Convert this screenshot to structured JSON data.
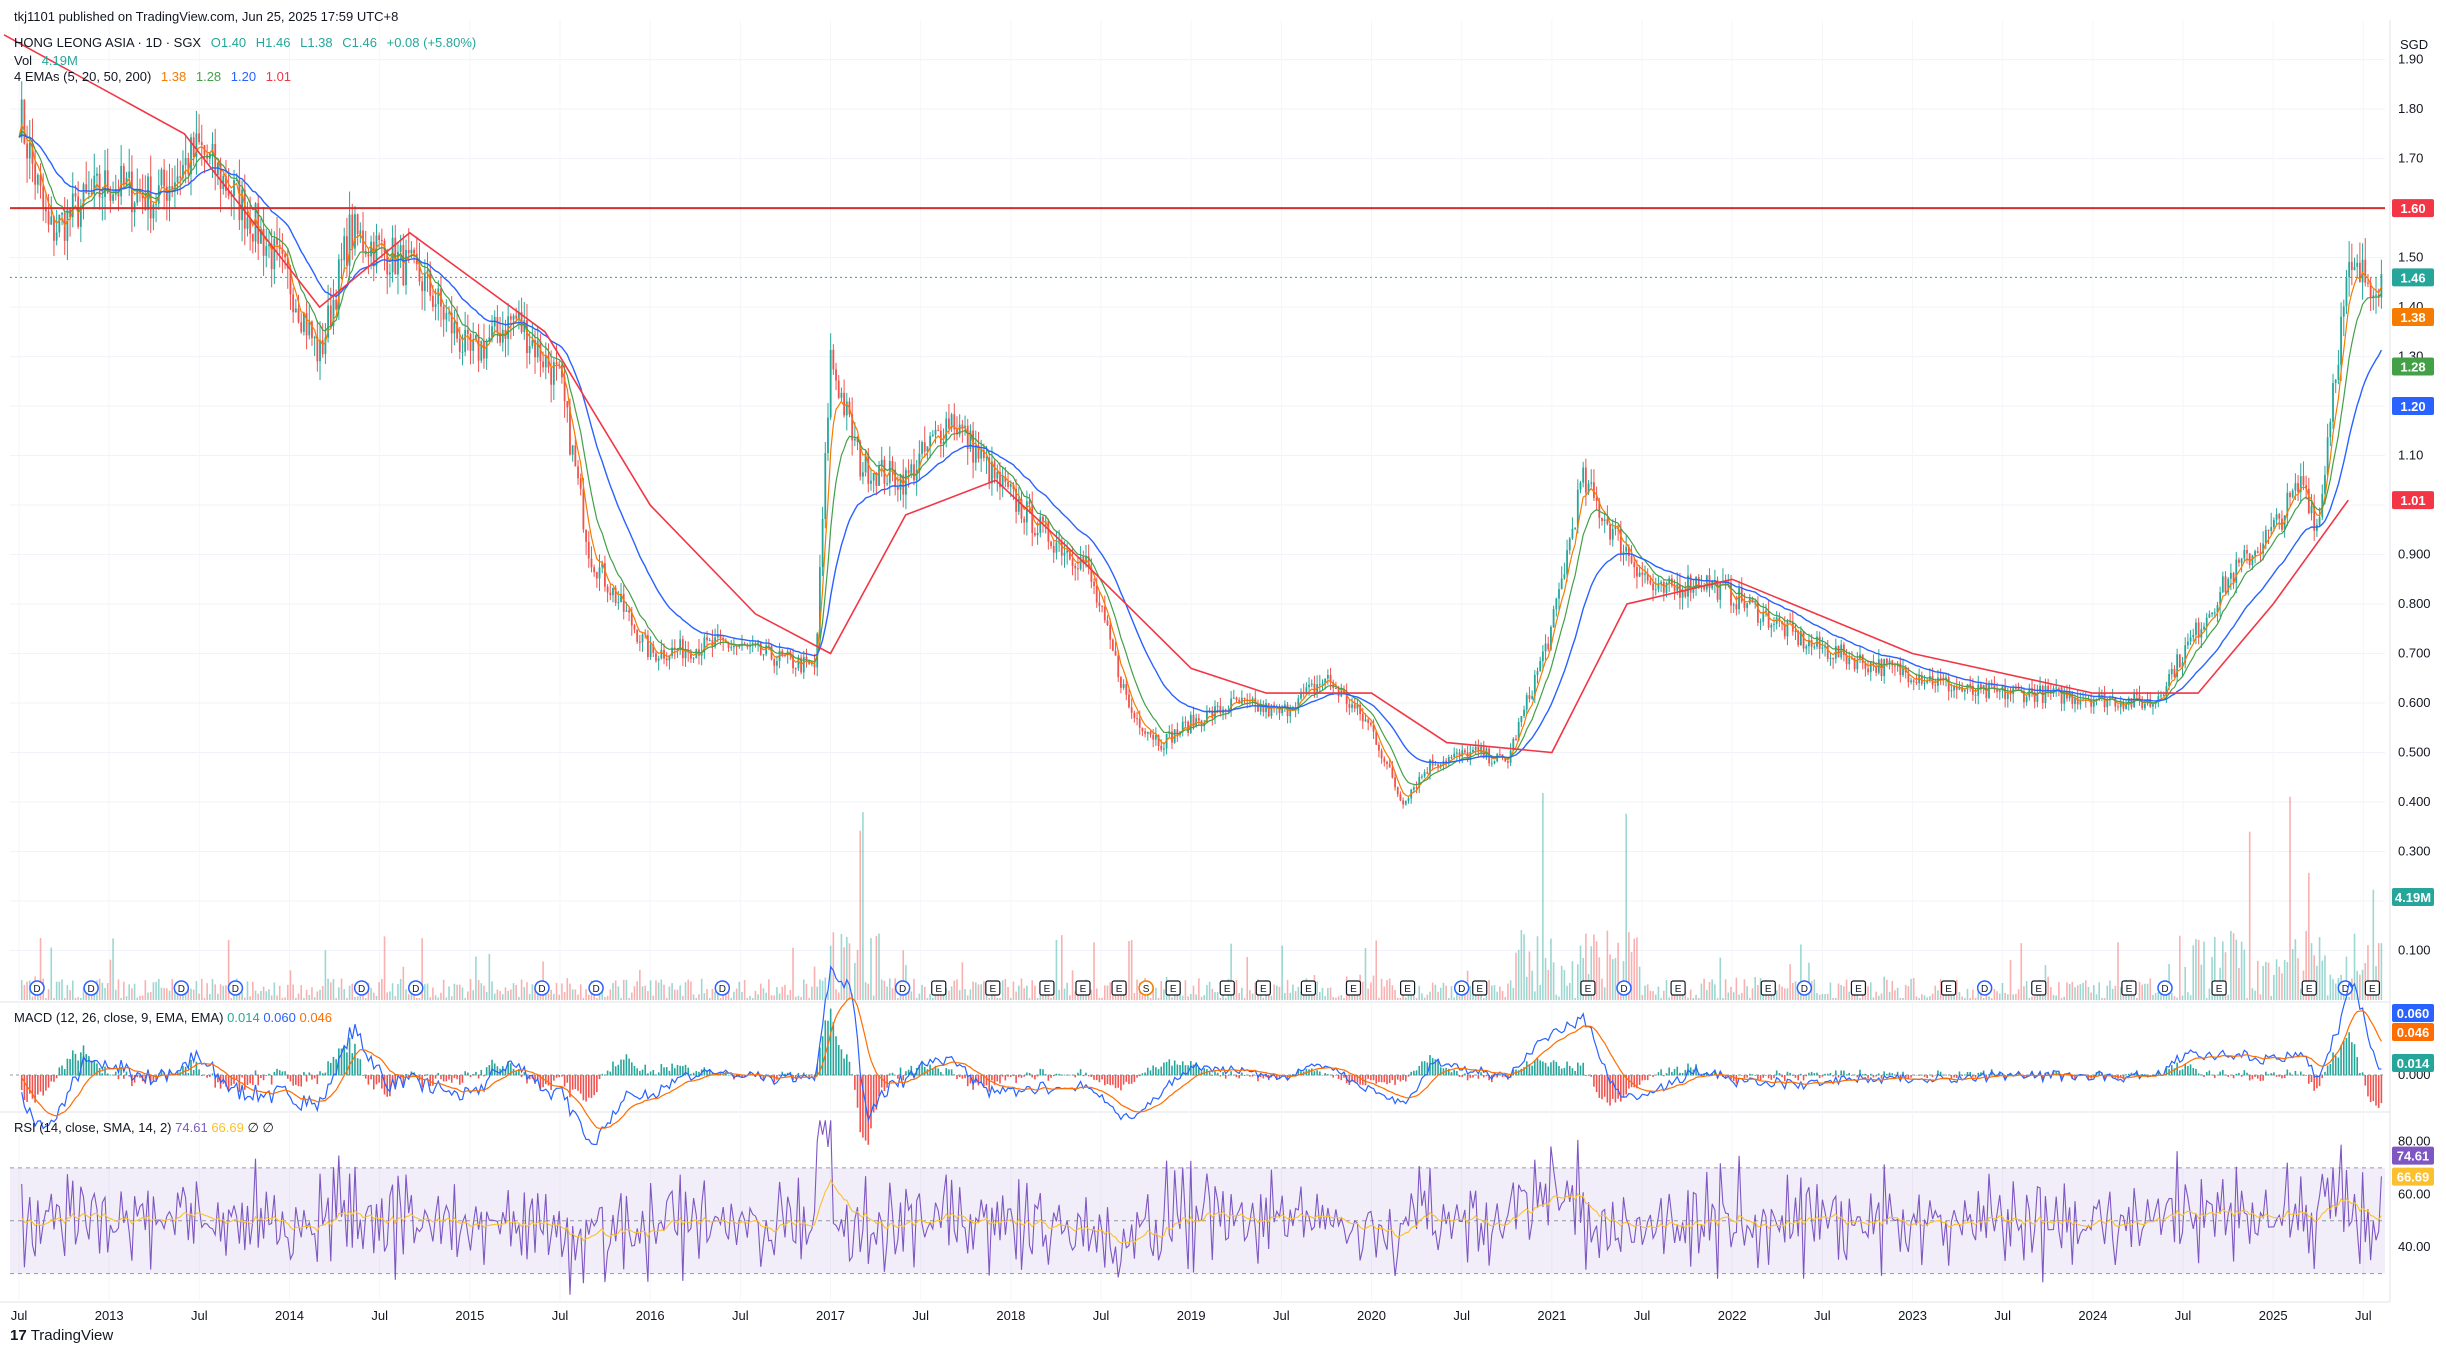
{
  "header": {
    "published": "tkj1101 published on TradingView.com, Jun 25, 2025 17:59 UTC+8",
    "symbol": "HONG LEONG ASIA · 1D · SGX",
    "ohlc": {
      "o": "O1.40",
      "h": "H1.46",
      "l": "L1.38",
      "c": "C1.46",
      "chg": "+0.08 (+5.80%)"
    },
    "vol_label": "Vol",
    "vol_value": "4.19M",
    "ema_label": "4 EMAs (5, 20, 50, 200)",
    "ema_values": [
      "1.38",
      "1.28",
      "1.20",
      "1.01"
    ]
  },
  "colors": {
    "up": "#26a69a",
    "down": "#ef5350",
    "ema5": "#f57c00",
    "ema20": "#43a047",
    "ema50": "#2962ff",
    "ema200": "#f23645",
    "resistance": "#d32f2f",
    "macd": "#2962ff",
    "signal": "#ff6d00",
    "rsi": "#7e57c2",
    "rsi_ma": "#fbc02d",
    "price_tag": "#26a69a"
  },
  "chart_data": {
    "type": "line",
    "currency": "SGD",
    "price_axis": {
      "ticks": [
        "1.90",
        "1.80",
        "1.70",
        "1.60",
        "1.50",
        "1.40",
        "1.30",
        "1.20",
        "1.10",
        "1.00",
        "0.900",
        "0.800",
        "0.700",
        "0.600",
        "0.500",
        "0.400",
        "0.300",
        "0.200",
        "0.100"
      ]
    },
    "time_axis": [
      "Jul",
      "2013",
      "Jul",
      "2014",
      "Jul",
      "2015",
      "Jul",
      "2016",
      "Jul",
      "2017",
      "Jul",
      "2018",
      "Jul",
      "2019",
      "Jul",
      "2020",
      "Jul",
      "2021",
      "Jul",
      "2022",
      "Jul",
      "2023",
      "Jul",
      "2024",
      "Jul",
      "2025",
      "Jul"
    ],
    "price_series": {
      "name": "Close",
      "x": [
        "2012-06",
        "2012-09",
        "2013-01",
        "2013-04",
        "2013-07",
        "2013-10",
        "2014-01",
        "2014-03",
        "2014-05",
        "2014-08",
        "2014-10",
        "2015-01",
        "2015-04",
        "2015-07",
        "2015-09",
        "2015-11",
        "2016-01",
        "2016-06",
        "2016-12",
        "2017-01",
        "2017-03",
        "2017-06",
        "2017-09",
        "2017-12",
        "2018-03",
        "2018-06",
        "2018-09",
        "2018-11",
        "2019-01",
        "2019-04",
        "2019-07",
        "2019-10",
        "2020-01",
        "2020-03",
        "2020-05",
        "2020-08",
        "2020-10",
        "2021-01",
        "2021-03",
        "2021-05",
        "2021-08",
        "2021-11",
        "2022-02",
        "2022-06",
        "2022-10",
        "2023-01",
        "2023-05",
        "2023-09",
        "2024-01",
        "2024-05",
        "2024-08",
        "2024-10",
        "2025-01",
        "2025-03",
        "2025-04",
        "2025-05",
        "2025-06"
      ],
      "y": [
        1.92,
        1.55,
        1.65,
        1.62,
        1.72,
        1.6,
        1.45,
        1.3,
        1.55,
        1.5,
        1.45,
        1.3,
        1.38,
        1.25,
        0.9,
        0.8,
        0.7,
        0.72,
        0.67,
        1.3,
        1.08,
        1.05,
        1.18,
        1.05,
        0.95,
        0.88,
        0.58,
        0.52,
        0.56,
        0.6,
        0.58,
        0.65,
        0.55,
        0.4,
        0.48,
        0.5,
        0.48,
        0.75,
        1.05,
        0.95,
        0.82,
        0.85,
        0.8,
        0.72,
        0.68,
        0.66,
        0.62,
        0.62,
        0.61,
        0.6,
        0.75,
        0.85,
        0.95,
        1.05,
        0.95,
        1.25,
        1.46
      ]
    },
    "ema200_series": {
      "x": [
        "2012-06",
        "2013-06",
        "2014-03",
        "2014-09",
        "2015-06",
        "2016-01",
        "2016-08",
        "2017-01",
        "2017-06",
        "2017-12",
        "2018-06",
        "2019-01",
        "2019-06",
        "2020-01",
        "2020-06",
        "2021-01",
        "2021-06",
        "2022-01",
        "2023-01",
        "2024-01",
        "2024-08",
        "2025-01",
        "2025-06"
      ],
      "y": [
        1.95,
        1.75,
        1.4,
        1.55,
        1.35,
        1.0,
        0.78,
        0.7,
        0.98,
        1.05,
        0.88,
        0.67,
        0.62,
        0.62,
        0.52,
        0.5,
        0.8,
        0.85,
        0.7,
        0.62,
        0.62,
        0.8,
        1.01
      ]
    },
    "resistance_level": 1.6,
    "last_price": 1.46,
    "price_tags": [
      {
        "label": "1.60",
        "value": 1.6,
        "color": "#f23645"
      },
      {
        "label": "1.46",
        "value": 1.46,
        "color": "#26a69a"
      },
      {
        "label": "1.38",
        "value": 1.38,
        "color": "#f57c00"
      },
      {
        "label": "1.28",
        "value": 1.28,
        "color": "#43a047"
      },
      {
        "label": "1.20",
        "value": 1.2,
        "color": "#2962ff"
      },
      {
        "label": "1.01",
        "value": 1.01,
        "color": "#f23645"
      }
    ],
    "volume": {
      "last": "4.19M"
    },
    "events": [
      {
        "year": 2012.6,
        "type": "D"
      },
      {
        "year": 2012.9,
        "type": "D"
      },
      {
        "year": 2013.4,
        "type": "D"
      },
      {
        "year": 2013.7,
        "type": "D"
      },
      {
        "year": 2014.4,
        "type": "D"
      },
      {
        "year": 2014.7,
        "type": "D"
      },
      {
        "year": 2015.4,
        "type": "D"
      },
      {
        "year": 2015.7,
        "type": "D"
      },
      {
        "year": 2016.4,
        "type": "D"
      },
      {
        "year": 2017.4,
        "type": "D"
      },
      {
        "year": 2017.6,
        "type": "E"
      },
      {
        "year": 2017.9,
        "type": "E"
      },
      {
        "year": 2018.2,
        "type": "E"
      },
      {
        "year": 2018.4,
        "type": "E"
      },
      {
        "year": 2018.6,
        "type": "E"
      },
      {
        "year": 2018.75,
        "type": "S"
      },
      {
        "year": 2018.9,
        "type": "E"
      },
      {
        "year": 2019.2,
        "type": "E"
      },
      {
        "year": 2019.4,
        "type": "E"
      },
      {
        "year": 2019.65,
        "type": "E"
      },
      {
        "year": 2019.9,
        "type": "E"
      },
      {
        "year": 2020.2,
        "type": "E"
      },
      {
        "year": 2020.5,
        "type": "D"
      },
      {
        "year": 2020.6,
        "type": "E"
      },
      {
        "year": 2021.2,
        "type": "E"
      },
      {
        "year": 2021.4,
        "type": "D"
      },
      {
        "year": 2021.7,
        "type": "E"
      },
      {
        "year": 2022.2,
        "type": "E"
      },
      {
        "year": 2022.4,
        "type": "D"
      },
      {
        "year": 2022.7,
        "type": "E"
      },
      {
        "year": 2023.2,
        "type": "E"
      },
      {
        "year": 2023.4,
        "type": "D"
      },
      {
        "year": 2023.7,
        "type": "E"
      },
      {
        "year": 2024.2,
        "type": "E"
      },
      {
        "year": 2024.4,
        "type": "D"
      },
      {
        "year": 2024.7,
        "type": "E"
      },
      {
        "year": 2025.2,
        "type": "E"
      },
      {
        "year": 2025.4,
        "type": "D"
      },
      {
        "year": 2025.55,
        "type": "E"
      }
    ],
    "macd": {
      "label": "MACD (12, 26, close, 9, EMA, EMA)",
      "values": [
        "0.014",
        "0.060",
        "0.046"
      ],
      "axis_ticks": [
        "0.000"
      ],
      "tags": [
        {
          "label": "0.060",
          "color": "#2962ff"
        },
        {
          "label": "0.046",
          "color": "#ff6d00"
        },
        {
          "label": "0.014",
          "color": "#26a69a"
        }
      ]
    },
    "rsi": {
      "label": "RSI (14, close, SMA, 14, 2)",
      "values": [
        "74.61",
        "66.69",
        "∅",
        "∅"
      ],
      "axis_ticks": [
        "80.00",
        "60.00",
        "40.00"
      ],
      "overbought": 70,
      "oversold": 30,
      "tags": [
        {
          "label": "74.61",
          "value": 74.61,
          "color": "#7e57c2"
        },
        {
          "label": "66.69",
          "value": 66.69,
          "color": "#fbc02d"
        }
      ]
    }
  },
  "footer": {
    "logo": "17",
    "brand": "TradingView"
  }
}
